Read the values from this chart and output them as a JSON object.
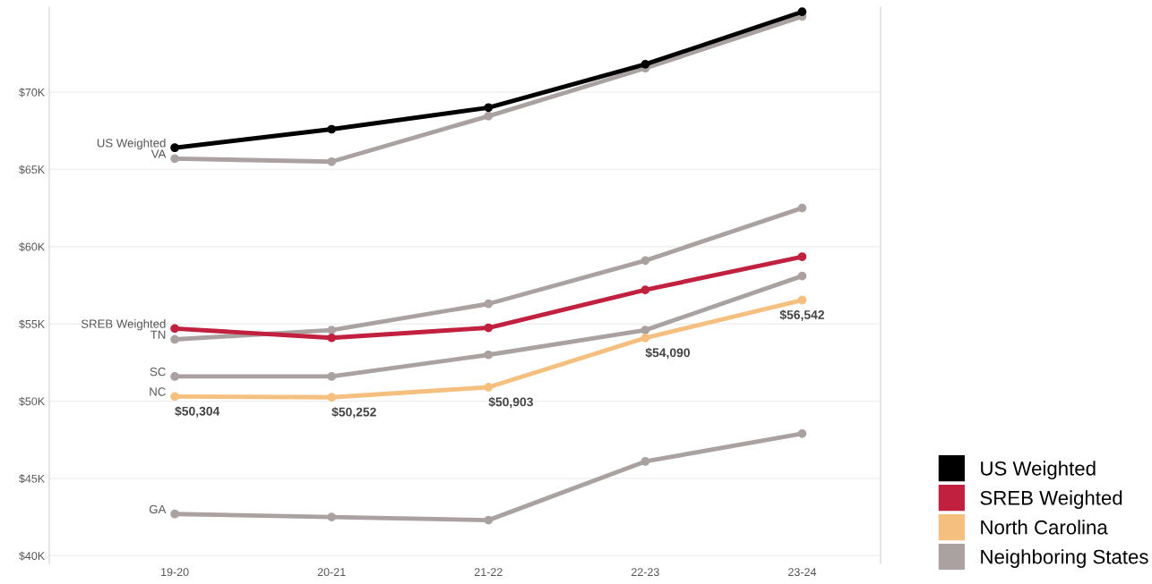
{
  "chart_data": {
    "type": "line",
    "categories": [
      "19-20",
      "20-21",
      "21-22",
      "22-23",
      "23-24"
    ],
    "series": [
      {
        "name": "Neighboring States",
        "color": "#aaa2a0",
        "values": [
          65700,
          65500,
          68450,
          71550,
          74900
        ]
      },
      {
        "color": "#aaa2a0",
        "values": [
          54000,
          54600,
          56300,
          59100,
          62500
        ]
      },
      {
        "color": "#aaa2a0",
        "values": [
          51600,
          51600,
          53000,
          54600,
          58100
        ]
      },
      {
        "color": "#aaa2a0",
        "values": [
          42700,
          42500,
          42300,
          46100,
          47900
        ]
      },
      {
        "name": "North Carolina",
        "color": "#f5bf7f",
        "values": [
          50304,
          50252,
          50903,
          54090,
          56542
        ],
        "value_labels": [
          "$50,304",
          "$50,252",
          "$50,903",
          "$54,090",
          "$56,542"
        ]
      },
      {
        "name": "SREB Weighted",
        "color": "#c1203f",
        "values": [
          54700,
          54100,
          54750,
          57200,
          59350
        ]
      },
      {
        "name": "US Weighted",
        "color": "#000000",
        "values": [
          66400,
          67600,
          69000,
          71800,
          75200
        ]
      }
    ],
    "ylim": [
      39500,
      75500
    ],
    "yticks": [
      {
        "value": 40000,
        "label": "$40K"
      },
      {
        "value": 45000,
        "label": "$45K"
      },
      {
        "value": 50000,
        "label": "$50K"
      },
      {
        "value": 55000,
        "label": "$55K"
      },
      {
        "value": 60000,
        "label": "$60K"
      },
      {
        "value": 65000,
        "label": "$65K"
      },
      {
        "value": 70000,
        "label": "$70K"
      }
    ],
    "annotations": [
      {
        "text": "US Weighted",
        "x": "19-20",
        "y": 66400
      },
      {
        "text": "VA",
        "x": "19-20",
        "y": 65700
      },
      {
        "text": "SREB Weighted",
        "x": "19-20",
        "y": 54700
      },
      {
        "text": "TN",
        "x": "19-20",
        "y": 54000
      },
      {
        "text": "SC",
        "x": "19-20",
        "y": 51600
      },
      {
        "text": "NC",
        "x": "19-20",
        "y": 50304
      },
      {
        "text": "GA",
        "x": "19-20",
        "y": 42700
      }
    ],
    "grid": "y",
    "legend": "bottom right",
    "marker": "circle",
    "line_style": "solid"
  }
}
